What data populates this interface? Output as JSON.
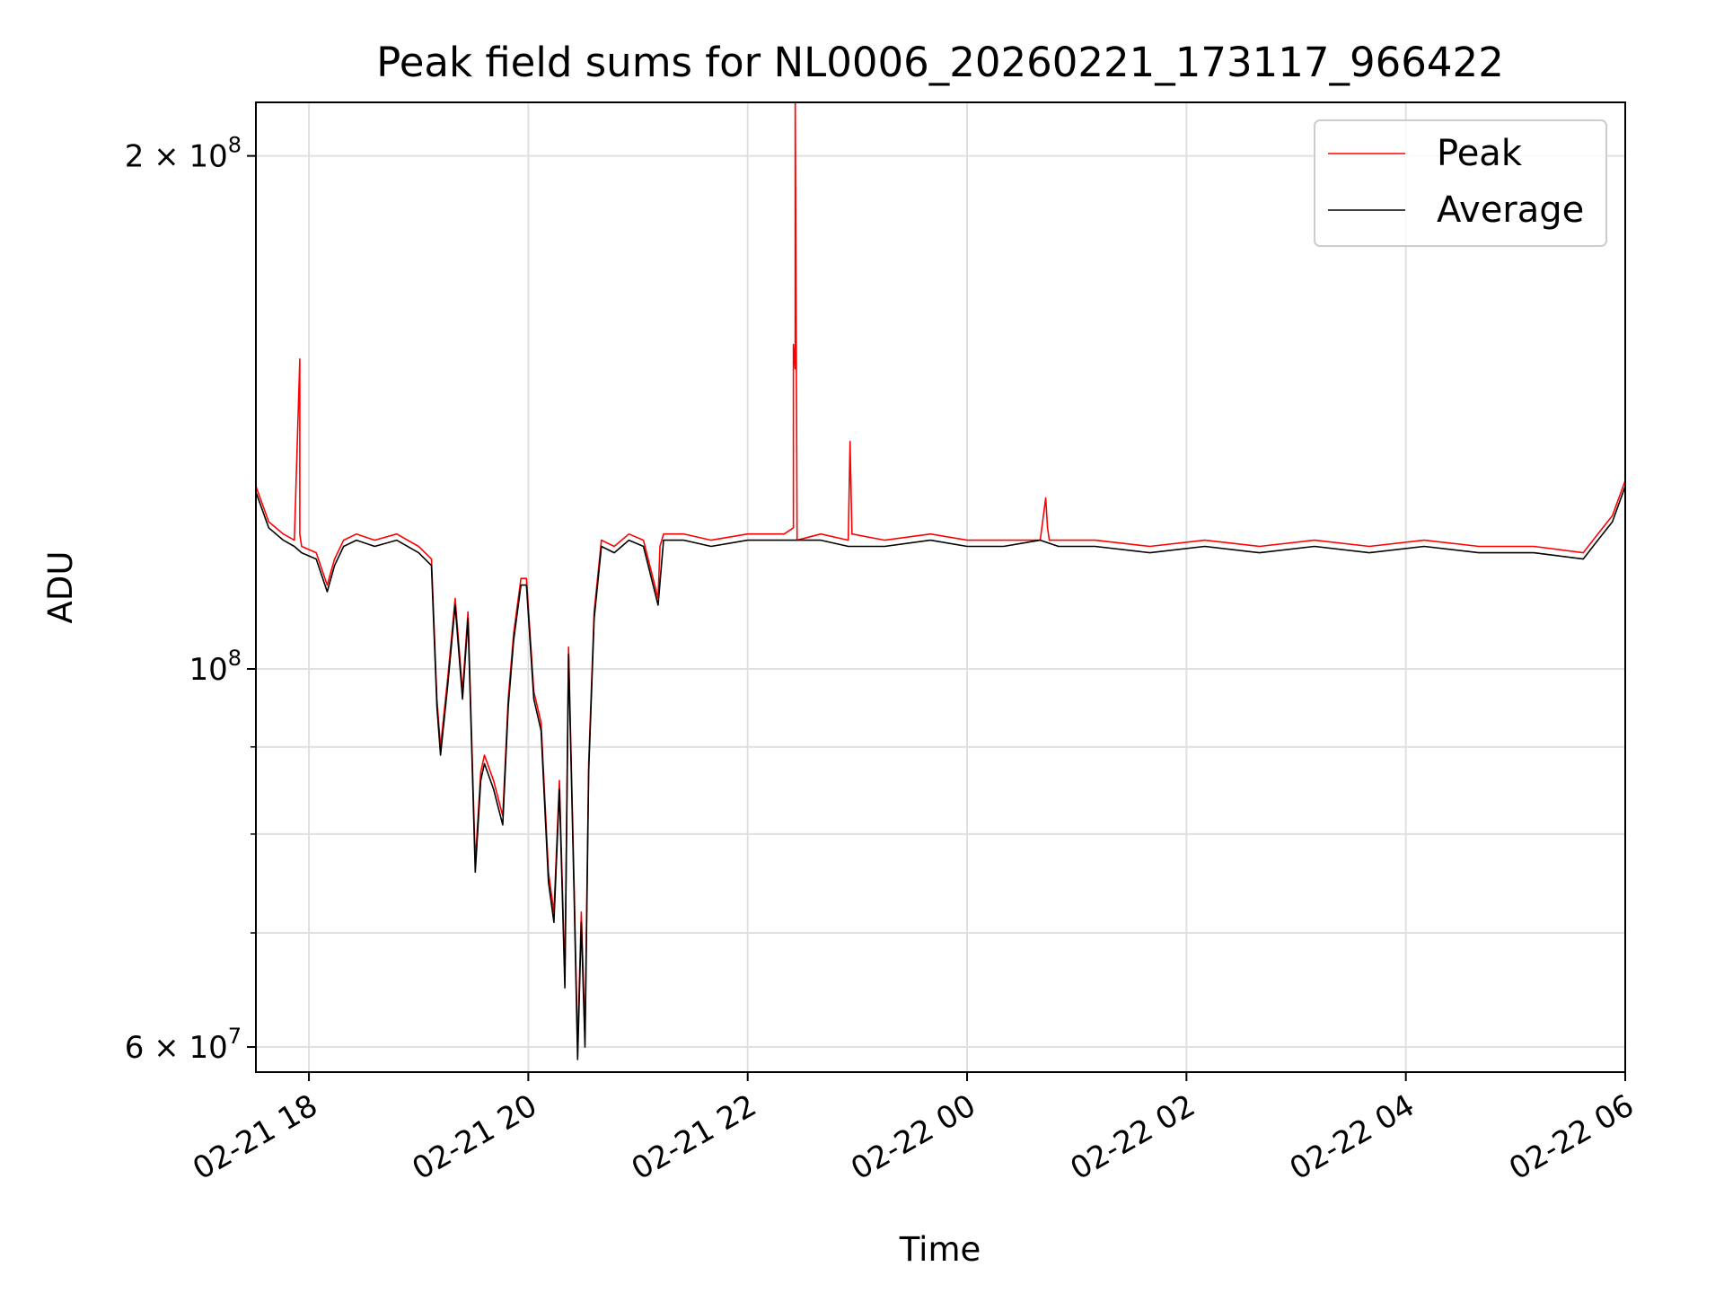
{
  "chart_data": {
    "type": "line",
    "title": "Peak field sums for NL0006_20260221_173117_966422",
    "xlabel": "Time",
    "ylabel": "ADU",
    "y_scale": "log",
    "xlim": [
      "2026-02-21T17:31",
      "2026-02-22T06:00"
    ],
    "ylim": [
      58000000,
      215000000
    ],
    "grid": true,
    "legend_position": "top-right",
    "x_tick_labels": [
      "02-21 18",
      "02-21 20",
      "02-21 22",
      "02-22 00",
      "02-22 02",
      "02-22 04",
      "02-22 06"
    ],
    "x_ticks": [
      "2026-02-21T18:00",
      "2026-02-21T20:00",
      "2026-02-21T22:00",
      "2026-02-22T00:00",
      "2026-02-22T02:00",
      "2026-02-22T04:00",
      "2026-02-22T06:00"
    ],
    "y_major_ticks": [
      {
        "value": 200000000,
        "mantissa": "2",
        "exponent": "8"
      },
      {
        "value": 100000000,
        "mantissa": "",
        "exponent": "8"
      },
      {
        "value": 60000000,
        "mantissa": "6",
        "exponent": "7"
      }
    ],
    "y_minor_ticks": [
      70000000,
      80000000,
      90000000
    ],
    "x_multiplication_sign": "×",
    "y_tick_base": "10",
    "series": [
      {
        "name": "Peak",
        "color": "#ff0000",
        "x": [
          "2026-02-21T17:31",
          "2026-02-21T17:38",
          "2026-02-21T17:46",
          "2026-02-21T17:52",
          "2026-02-21T17:55",
          "2026-02-21T17:55",
          "2026-02-21T17:56",
          "2026-02-21T18:04",
          "2026-02-21T18:10",
          "2026-02-21T18:14",
          "2026-02-21T18:19",
          "2026-02-21T18:26",
          "2026-02-21T18:36",
          "2026-02-21T18:48",
          "2026-02-21T19:00",
          "2026-02-21T19:07",
          "2026-02-21T19:10",
          "2026-02-21T19:12",
          "2026-02-21T19:16",
          "2026-02-21T19:20",
          "2026-02-21T19:24",
          "2026-02-21T19:27",
          "2026-02-21T19:31",
          "2026-02-21T19:34",
          "2026-02-21T19:36",
          "2026-02-21T19:41",
          "2026-02-21T19:46",
          "2026-02-21T19:49",
          "2026-02-21T19:52",
          "2026-02-21T19:56",
          "2026-02-21T19:59",
          "2026-02-21T20:03",
          "2026-02-21T20:07",
          "2026-02-21T20:11",
          "2026-02-21T20:14",
          "2026-02-21T20:17",
          "2026-02-21T20:20",
          "2026-02-21T20:22",
          "2026-02-21T20:25",
          "2026-02-21T20:27",
          "2026-02-21T20:29",
          "2026-02-21T20:31",
          "2026-02-21T20:33",
          "2026-02-21T20:36",
          "2026-02-21T20:40",
          "2026-02-21T20:47",
          "2026-02-21T20:55",
          "2026-02-21T21:03",
          "2026-02-21T21:11",
          "2026-02-21T21:12",
          "2026-02-21T21:14",
          "2026-02-21T21:25",
          "2026-02-21T21:40",
          "2026-02-21T22:00",
          "2026-02-21T22:20",
          "2026-02-21T22:25",
          "2026-02-21T22:25",
          "2026-02-21T22:26",
          "2026-02-21T22:26",
          "2026-02-21T22:27",
          "2026-02-21T22:27",
          "2026-02-21T22:40",
          "2026-02-21T22:55",
          "2026-02-21T22:56",
          "2026-02-21T22:57",
          "2026-02-21T23:15",
          "2026-02-21T23:40",
          "2026-02-22T00:00",
          "2026-02-22T00:20",
          "2026-02-22T00:40",
          "2026-02-22T00:43",
          "2026-02-22T00:44",
          "2026-02-22T00:45",
          "2026-02-22T00:50",
          "2026-02-22T01:10",
          "2026-02-22T01:40",
          "2026-02-22T02:10",
          "2026-02-22T02:40",
          "2026-02-22T03:10",
          "2026-02-22T03:40",
          "2026-02-22T04:10",
          "2026-02-22T04:40",
          "2026-02-22T05:10",
          "2026-02-22T05:37",
          "2026-02-22T05:45",
          "2026-02-22T05:53",
          "2026-02-22T06:00"
        ],
        "y": [
          128000000,
          122000000,
          120000000,
          119000000,
          152000000,
          120000000,
          118000000,
          117000000,
          112000000,
          116000000,
          119000000,
          120000000,
          119000000,
          120000000,
          118000000,
          116000000,
          96000000,
          90000000,
          99000000,
          110000000,
          97000000,
          108000000,
          77000000,
          87000000,
          89000000,
          86000000,
          82000000,
          96000000,
          105000000,
          113000000,
          113000000,
          97000000,
          93000000,
          76000000,
          72000000,
          86000000,
          66000000,
          103000000,
          75000000,
          60000000,
          72000000,
          61000000,
          88000000,
          108000000,
          119000000,
          118000000,
          120000000,
          119000000,
          110000000,
          118000000,
          120000000,
          120000000,
          119000000,
          120000000,
          120000000,
          121000000,
          155000000,
          150000000,
          220000000,
          120000000,
          119000000,
          120000000,
          119000000,
          136000000,
          120000000,
          119000000,
          120000000,
          119000000,
          119000000,
          119000000,
          126000000,
          121000000,
          119000000,
          119000000,
          119000000,
          118000000,
          119000000,
          118000000,
          119000000,
          118000000,
          119000000,
          118000000,
          118000000,
          117000000,
          120000000,
          123000000,
          129000000
        ]
      },
      {
        "name": "Average",
        "color": "#000000",
        "x": [
          "2026-02-21T17:31",
          "2026-02-21T17:38",
          "2026-02-21T17:46",
          "2026-02-21T17:52",
          "2026-02-21T17:56",
          "2026-02-21T18:04",
          "2026-02-21T18:10",
          "2026-02-21T18:14",
          "2026-02-21T18:19",
          "2026-02-21T18:26",
          "2026-02-21T18:36",
          "2026-02-21T18:48",
          "2026-02-21T19:00",
          "2026-02-21T19:07",
          "2026-02-21T19:10",
          "2026-02-21T19:12",
          "2026-02-21T19:16",
          "2026-02-21T19:20",
          "2026-02-21T19:24",
          "2026-02-21T19:27",
          "2026-02-21T19:31",
          "2026-02-21T19:34",
          "2026-02-21T19:36",
          "2026-02-21T19:41",
          "2026-02-21T19:46",
          "2026-02-21T19:49",
          "2026-02-21T19:52",
          "2026-02-21T19:56",
          "2026-02-21T19:59",
          "2026-02-21T20:03",
          "2026-02-21T20:07",
          "2026-02-21T20:11",
          "2026-02-21T20:14",
          "2026-02-21T20:17",
          "2026-02-21T20:20",
          "2026-02-21T20:22",
          "2026-02-21T20:25",
          "2026-02-21T20:27",
          "2026-02-21T20:29",
          "2026-02-21T20:31",
          "2026-02-21T20:33",
          "2026-02-21T20:36",
          "2026-02-21T20:40",
          "2026-02-21T20:47",
          "2026-02-21T20:55",
          "2026-02-21T21:03",
          "2026-02-21T21:11",
          "2026-02-21T21:14",
          "2026-02-21T21:25",
          "2026-02-21T21:40",
          "2026-02-21T22:00",
          "2026-02-21T22:20",
          "2026-02-21T22:40",
          "2026-02-21T22:55",
          "2026-02-21T23:15",
          "2026-02-21T23:40",
          "2026-02-22T00:00",
          "2026-02-22T00:20",
          "2026-02-22T00:40",
          "2026-02-22T00:50",
          "2026-02-22T01:10",
          "2026-02-22T01:40",
          "2026-02-22T02:10",
          "2026-02-22T02:40",
          "2026-02-22T03:10",
          "2026-02-22T03:40",
          "2026-02-22T04:10",
          "2026-02-22T04:40",
          "2026-02-22T05:10",
          "2026-02-22T05:37",
          "2026-02-22T05:45",
          "2026-02-22T05:53",
          "2026-02-22T06:00"
        ],
        "y": [
          127000000,
          121000000,
          119000000,
          118000000,
          117000000,
          116000000,
          111000000,
          115000000,
          118000000,
          119000000,
          118000000,
          119000000,
          117000000,
          115000000,
          95000000,
          89000000,
          98000000,
          109000000,
          96000000,
          107000000,
          76000000,
          86000000,
          88000000,
          85000000,
          81000000,
          95000000,
          104000000,
          112000000,
          112000000,
          96000000,
          92000000,
          75000000,
          71000000,
          85000000,
          65000000,
          102000000,
          74000000,
          59000000,
          71000000,
          60000000,
          87000000,
          107000000,
          118000000,
          117000000,
          119000000,
          118000000,
          109000000,
          119000000,
          119000000,
          118000000,
          119000000,
          119000000,
          119000000,
          118000000,
          118000000,
          119000000,
          118000000,
          118000000,
          119000000,
          118000000,
          118000000,
          117000000,
          118000000,
          117000000,
          118000000,
          117000000,
          118000000,
          117000000,
          117000000,
          116000000,
          119000000,
          122000000,
          128000000
        ]
      }
    ]
  }
}
